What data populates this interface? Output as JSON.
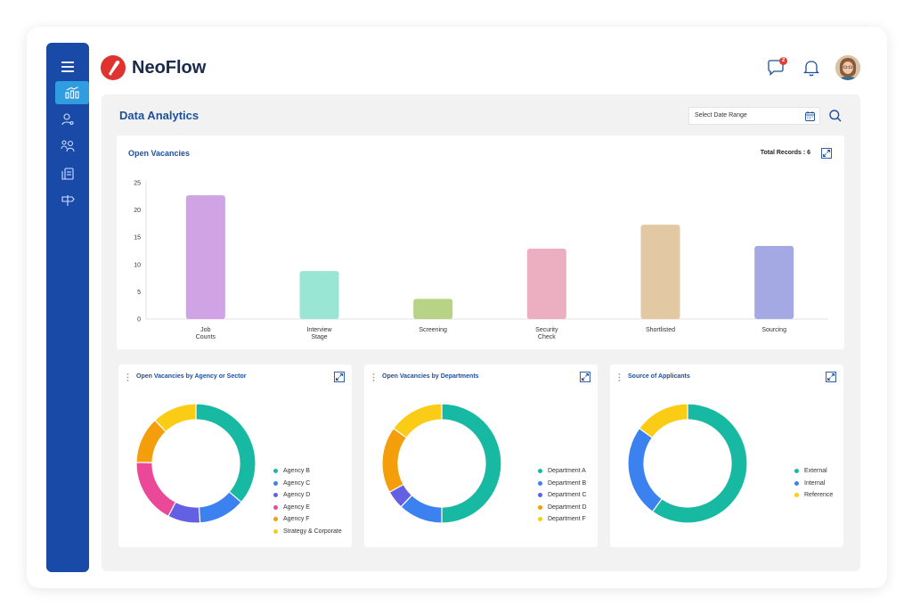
{
  "brand": {
    "name": "NeoFlow",
    "accent": "#1a4aa8",
    "logo_color": "#e0332f"
  },
  "sidebar": {
    "items": [
      {
        "icon": "menu-icon"
      },
      {
        "icon": "analytics-icon",
        "active": true
      },
      {
        "icon": "user-icon"
      },
      {
        "icon": "team-icon"
      },
      {
        "icon": "documents-icon"
      },
      {
        "icon": "signpost-icon"
      }
    ]
  },
  "header": {
    "notifications_badge": "2"
  },
  "page": {
    "title": "Data Analytics"
  },
  "filters": {
    "date_range_placeholder": "Select Date Range"
  },
  "open_vacancies": {
    "title": "Open Vacancies",
    "total_records": "Total Records : 6"
  },
  "agency_card": {
    "title": "Open Vacancies by Agency or Sector"
  },
  "departments_card": {
    "title": "Open Vacancies by Departments"
  },
  "source_card": {
    "title": "Source of Applicants"
  },
  "chart_data": [
    {
      "type": "bar",
      "title": "Open Vacancies",
      "categories": [
        "Job Counts",
        "Interview Stage",
        "Screening",
        "Security Check",
        "Shortlisted",
        "Sourcing"
      ],
      "values": [
        22.7,
        8.8,
        3.7,
        12.9,
        17.3,
        13.4
      ],
      "colors": [
        "#cfa3e4",
        "#98e6d3",
        "#b8d386",
        "#ecaec1",
        "#e3c9a3",
        "#a5a9e3"
      ],
      "ylim": [
        0,
        25
      ],
      "yticks": [
        "0",
        "5",
        "10",
        "15",
        "20",
        "25"
      ],
      "grid": false
    },
    {
      "type": "pie",
      "title": "Open Vacancies by Agency or Sector",
      "labels": [
        "Agency B",
        "Agency C",
        "Agency D",
        "Agency E",
        "Agency F",
        "Strategy & Corporate"
      ],
      "values": [
        33,
        11.5,
        8,
        16,
        11.5,
        11
      ],
      "colors": [
        "#17b9a3",
        "#3b82f0",
        "#6360e3",
        "#ec4899",
        "#f59e0b",
        "#facc15"
      ]
    },
    {
      "type": "pie",
      "title": "Open Vacancies by Departments",
      "labels": [
        "Department A",
        "Department B",
        "Department C",
        "Department D",
        "Department F"
      ],
      "values": [
        50,
        12,
        5,
        18,
        15
      ],
      "colors": [
        "#17b9a3",
        "#3b82f0",
        "#6360e3",
        "#f59e0b",
        "#facc15"
      ]
    },
    {
      "type": "pie",
      "title": "Source of Applicants",
      "labels": [
        "External",
        "Internal",
        "Reference"
      ],
      "values": [
        60,
        25,
        15
      ],
      "colors": [
        "#17b9a3",
        "#3b82f0",
        "#facc15"
      ]
    }
  ]
}
